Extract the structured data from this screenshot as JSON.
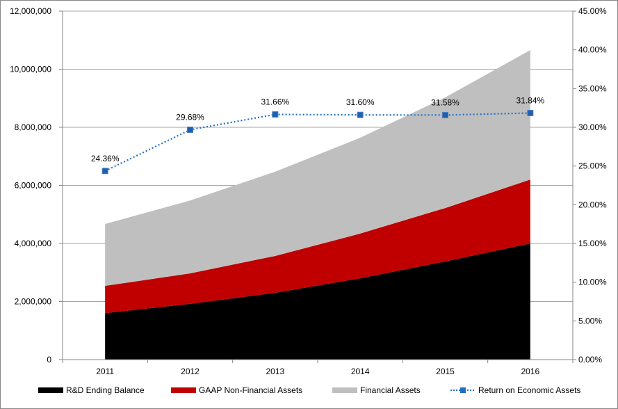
{
  "chart_data": {
    "type": "area",
    "stacked": true,
    "categories": [
      "2011",
      "2012",
      "2013",
      "2014",
      "2015",
      "2016"
    ],
    "series": [
      {
        "name": "R&D Ending Balance",
        "axis": "left",
        "color": "#000000",
        "values": [
          1600000,
          1920000,
          2300000,
          2800000,
          3380000,
          4000000
        ]
      },
      {
        "name": "GAAP Non-Financial Assets",
        "axis": "left",
        "color": "#C00000",
        "values": [
          940000,
          1050000,
          1270000,
          1540000,
          1840000,
          2200000
        ]
      },
      {
        "name": "Financial Assets",
        "axis": "left",
        "color": "#BFBFBF",
        "values": [
          2130000,
          2510000,
          2900000,
          3300000,
          3810000,
          4460000
        ]
      },
      {
        "name": "Return on Economic Assets",
        "axis": "right",
        "type": "line",
        "color": "#1F6FC5",
        "values": [
          24.36,
          29.68,
          31.66,
          31.6,
          31.58,
          31.84
        ],
        "labels": [
          "24.36%",
          "29.68%",
          "31.66%",
          "31.60%",
          "31.58%",
          "31.84%"
        ]
      }
    ],
    "left_axis": {
      "ylim": [
        0,
        12000000
      ],
      "ticks": [
        "0",
        "2,000,000",
        "4,000,000",
        "6,000,000",
        "8,000,000",
        "10,000,000",
        "12,000,000"
      ]
    },
    "right_axis": {
      "ylim": [
        0,
        45
      ],
      "ticks": [
        "0.00%",
        "5.00%",
        "10.00%",
        "15.00%",
        "20.00%",
        "25.00%",
        "30.00%",
        "35.00%",
        "40.00%",
        "45.00%"
      ]
    },
    "grid": true,
    "legend": "bottom"
  }
}
